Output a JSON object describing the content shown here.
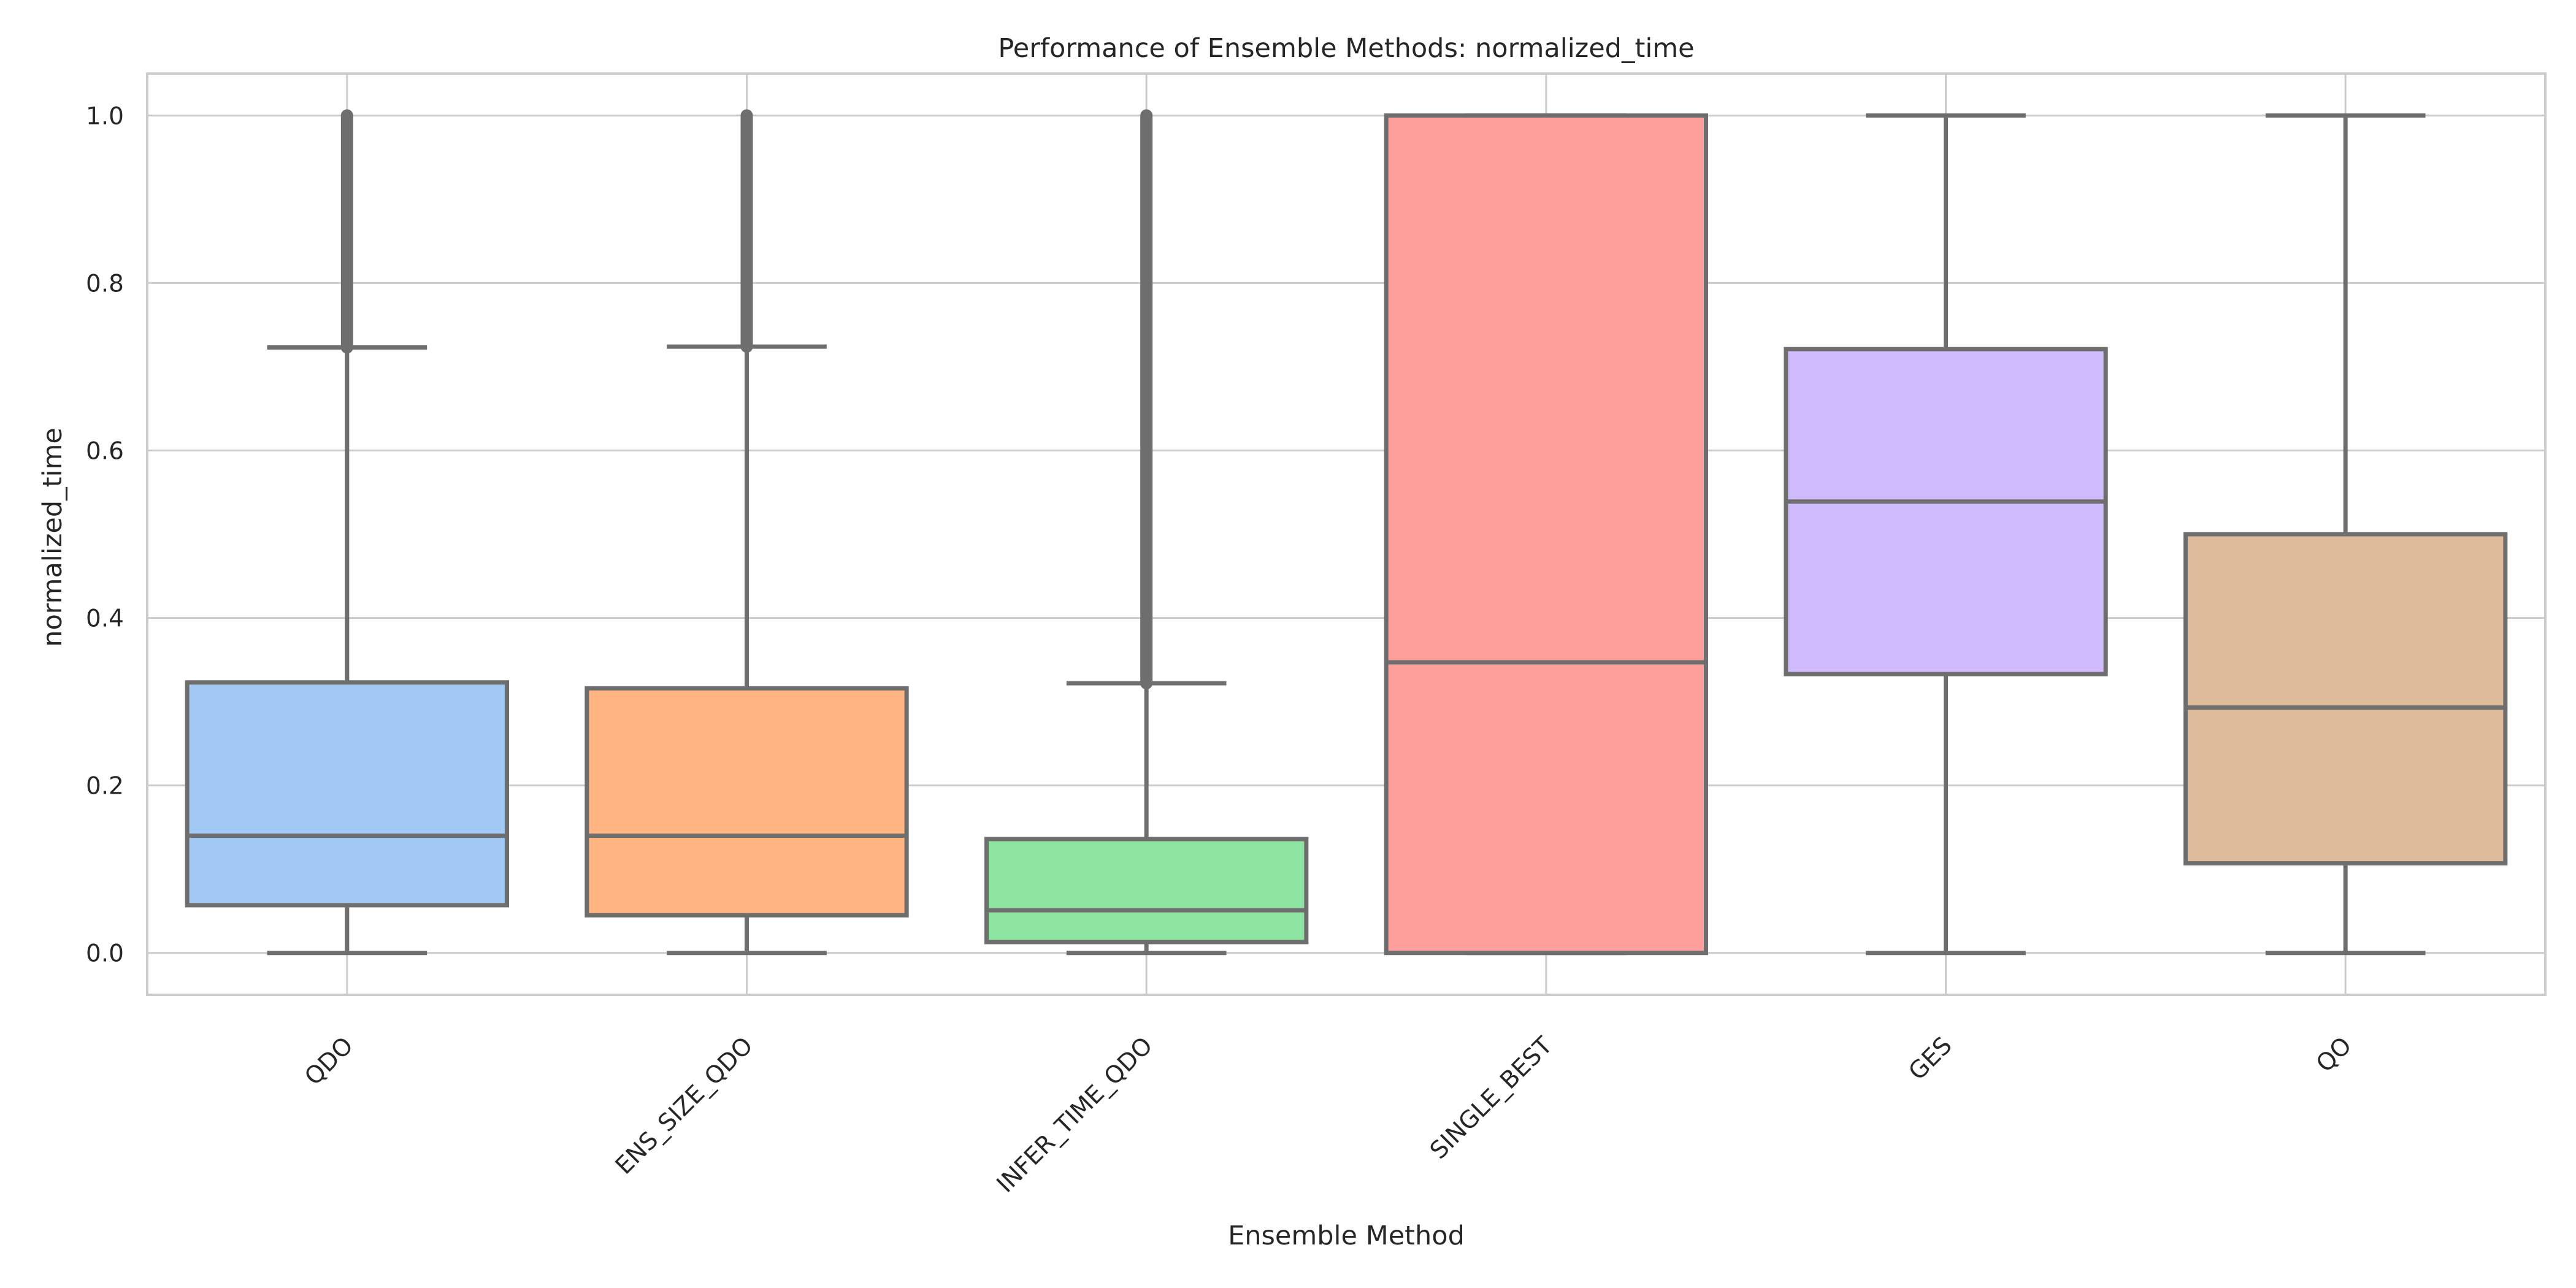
{
  "chart_data": {
    "type": "box",
    "title": "Performance of Ensemble Methods: normalized_time",
    "xlabel": "Ensemble Method",
    "ylabel": "normalized_time",
    "ylim": [
      -0.05,
      1.05
    ],
    "yticks": [
      0.0,
      0.2,
      0.4,
      0.6,
      0.8,
      1.0
    ],
    "ytick_labels": [
      "0.0",
      "0.2",
      "0.4",
      "0.6",
      "0.8",
      "1.0"
    ],
    "grid": true,
    "categories": [
      "QDO",
      "ENS_SIZE_QDO",
      "INFER_TIME_QDO",
      "SINGLE_BEST",
      "GES",
      "QO"
    ],
    "boxes": [
      {
        "category": "QDO",
        "min": 0.0,
        "q1": 0.057,
        "median": 0.14,
        "q3": 0.323,
        "whisker_high": 0.723,
        "outliers_from": 0.723,
        "outliers_to": 1.0,
        "color": "#a1c9f4"
      },
      {
        "category": "ENS_SIZE_QDO",
        "min": 0.0,
        "q1": 0.045,
        "median": 0.14,
        "q3": 0.316,
        "whisker_high": 0.724,
        "outliers_from": 0.724,
        "outliers_to": 1.0,
        "color": "#ffb482"
      },
      {
        "category": "INFER_TIME_QDO",
        "min": 0.0,
        "q1": 0.013,
        "median": 0.051,
        "q3": 0.136,
        "whisker_high": 0.322,
        "outliers_from": 0.322,
        "outliers_to": 1.0,
        "color": "#8de5a1"
      },
      {
        "category": "SINGLE_BEST",
        "min": 0.0,
        "q1": 0.0,
        "median": 0.347,
        "q3": 1.0,
        "whisker_high": 1.0,
        "color": "#ff9f9b"
      },
      {
        "category": "GES",
        "min": 0.0,
        "q1": 0.333,
        "median": 0.539,
        "q3": 0.721,
        "whisker_high": 1.0,
        "color": "#d0bbff"
      },
      {
        "category": "QO",
        "min": 0.0,
        "q1": 0.107,
        "median": 0.293,
        "q3": 0.5,
        "whisker_high": 1.0,
        "color": "#debb9b"
      }
    ],
    "box_edge_color": "#6e6e6e"
  }
}
